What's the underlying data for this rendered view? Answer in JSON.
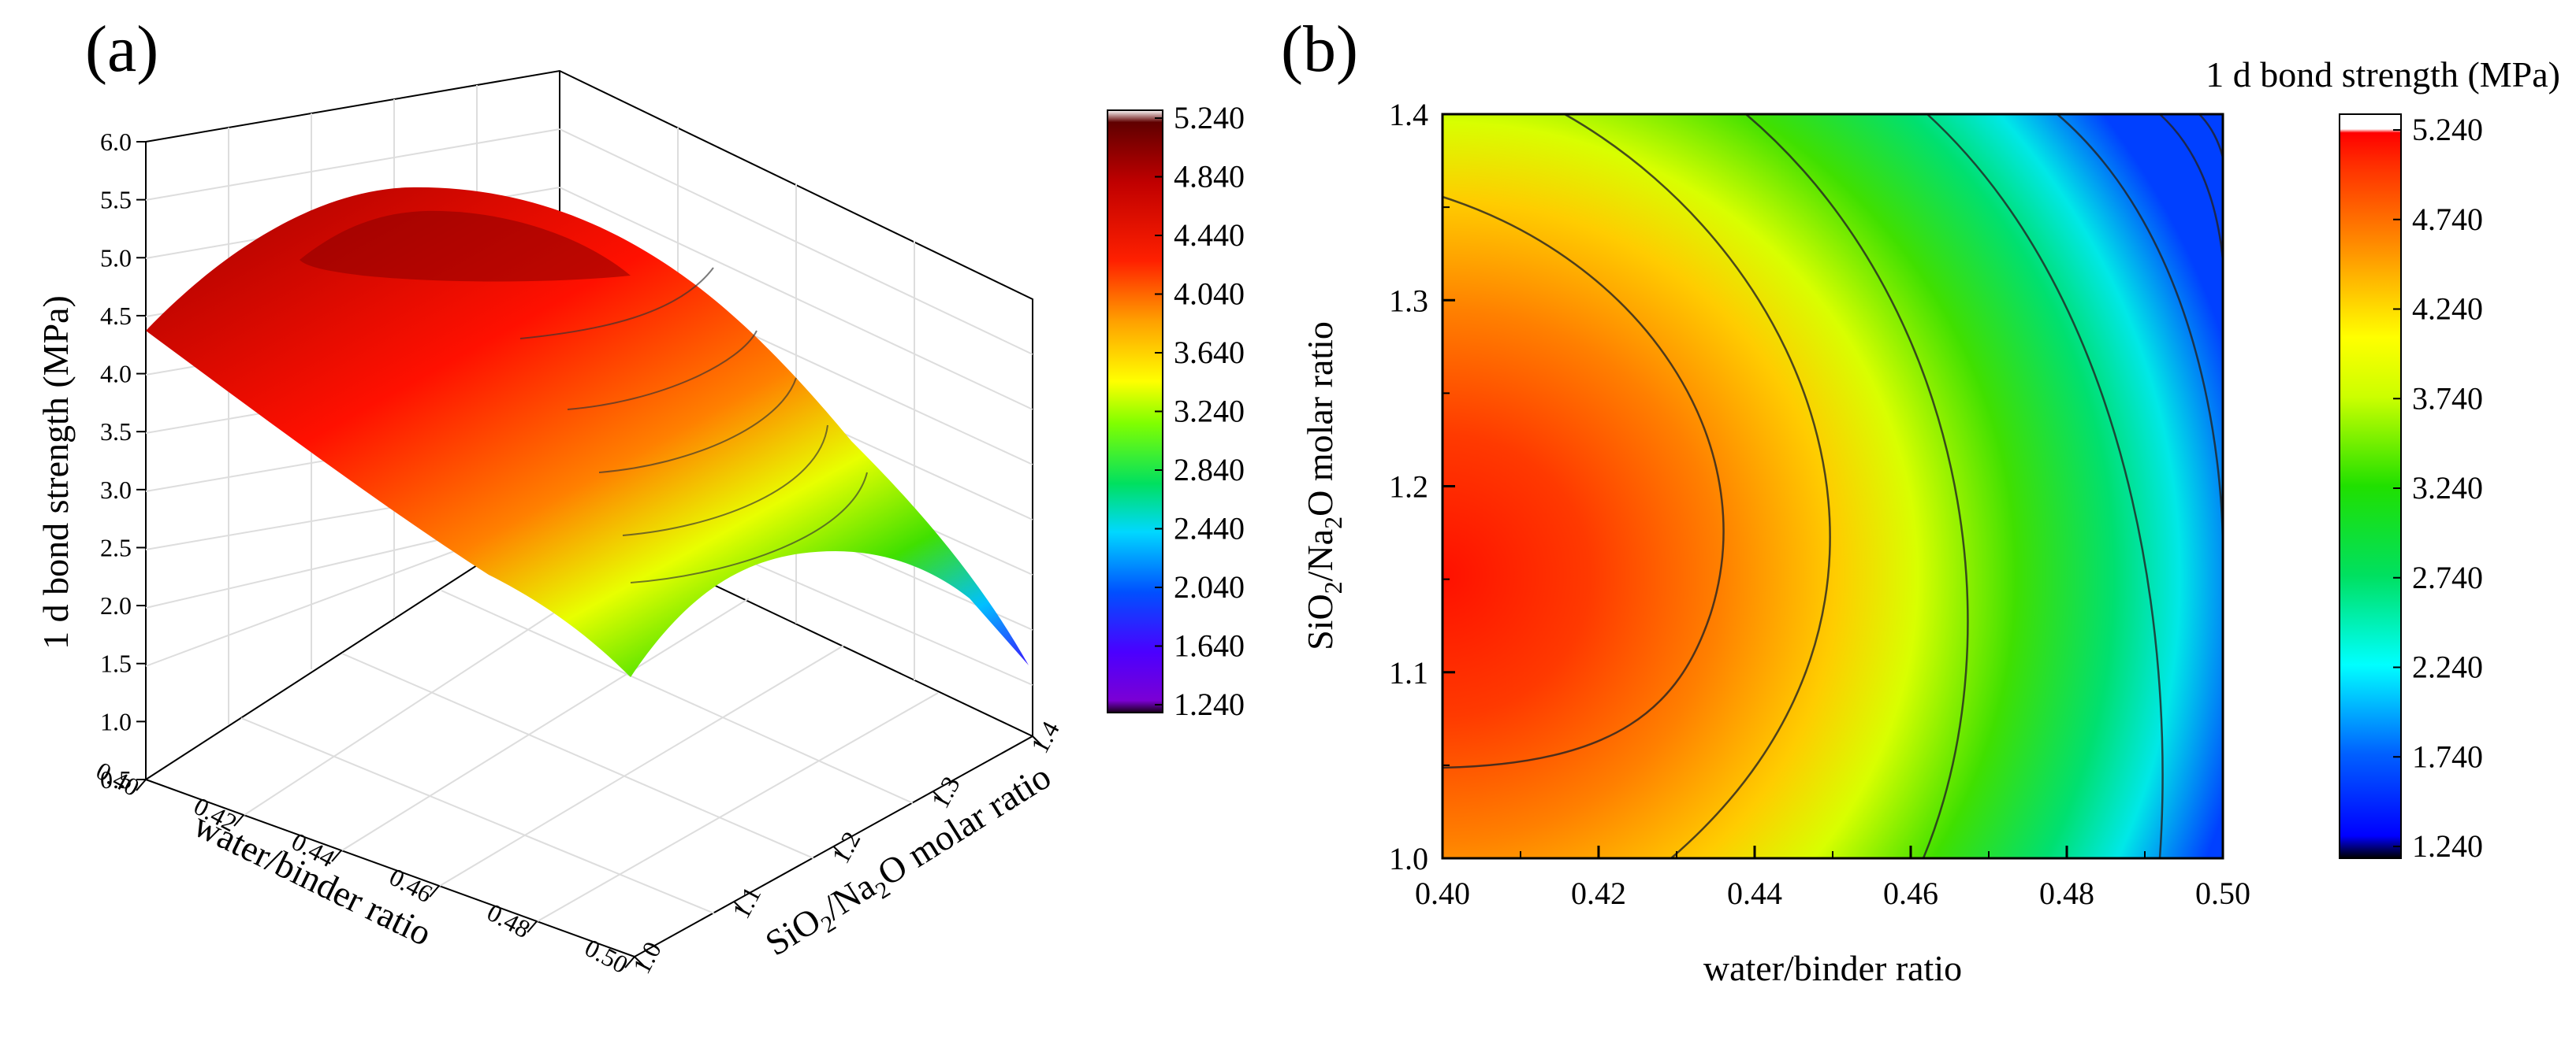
{
  "chart_data": [
    {
      "panel_label": "(a)",
      "type": "surface3d",
      "title": "",
      "xlabel": "water/binder ratio",
      "ylabel": "SiO2/Na2O molar ratio",
      "zlabel": "1 d bond strength (MPa)",
      "x_ticks": [
        "0.40",
        "0.42",
        "0.44",
        "0.46",
        "0.48",
        "0.50"
      ],
      "y_ticks": [
        "1.0",
        "1.1",
        "1.2",
        "1.3",
        "1.4"
      ],
      "z_ticks": [
        "0.5",
        "1.0",
        "1.5",
        "2.0",
        "2.5",
        "3.0",
        "3.5",
        "4.0",
        "4.5",
        "5.0",
        "5.5",
        "6.0"
      ],
      "xlim": [
        0.4,
        0.5
      ],
      "ylim": [
        1.0,
        1.4
      ],
      "zlim": [
        0.5,
        6.0
      ],
      "grid": true,
      "colorbar": {
        "ticks": [
          "5.240",
          "4.840",
          "4.440",
          "4.040",
          "3.640",
          "3.240",
          "2.840",
          "2.440",
          "2.040",
          "1.640",
          "1.240"
        ],
        "range": [
          1.24,
          5.24
        ]
      }
    },
    {
      "panel_label": "(b)",
      "type": "contour",
      "title": "1 d bond strength (MPa)",
      "xlabel": "water/binder ratio",
      "ylabel_parts": {
        "a": "SiO",
        "sub1": "2",
        "b": "/Na",
        "sub2": "2",
        "c": "O molar ratio"
      },
      "x_ticks": [
        "0.40",
        "0.42",
        "0.44",
        "0.46",
        "0.48",
        "0.50"
      ],
      "y_ticks": [
        "1.0",
        "1.1",
        "1.2",
        "1.3",
        "1.4"
      ],
      "xlim": [
        0.4,
        0.5
      ],
      "ylim": [
        1.0,
        1.4
      ],
      "contour_levels": [
        4.74,
        4.24,
        3.74,
        3.24,
        2.74,
        2.24,
        1.74
      ],
      "colorbar": {
        "ticks": [
          "5.240",
          "4.740",
          "4.240",
          "3.740",
          "3.240",
          "2.740",
          "2.240",
          "1.740",
          "1.240"
        ],
        "range": [
          1.24,
          5.24
        ]
      }
    }
  ]
}
